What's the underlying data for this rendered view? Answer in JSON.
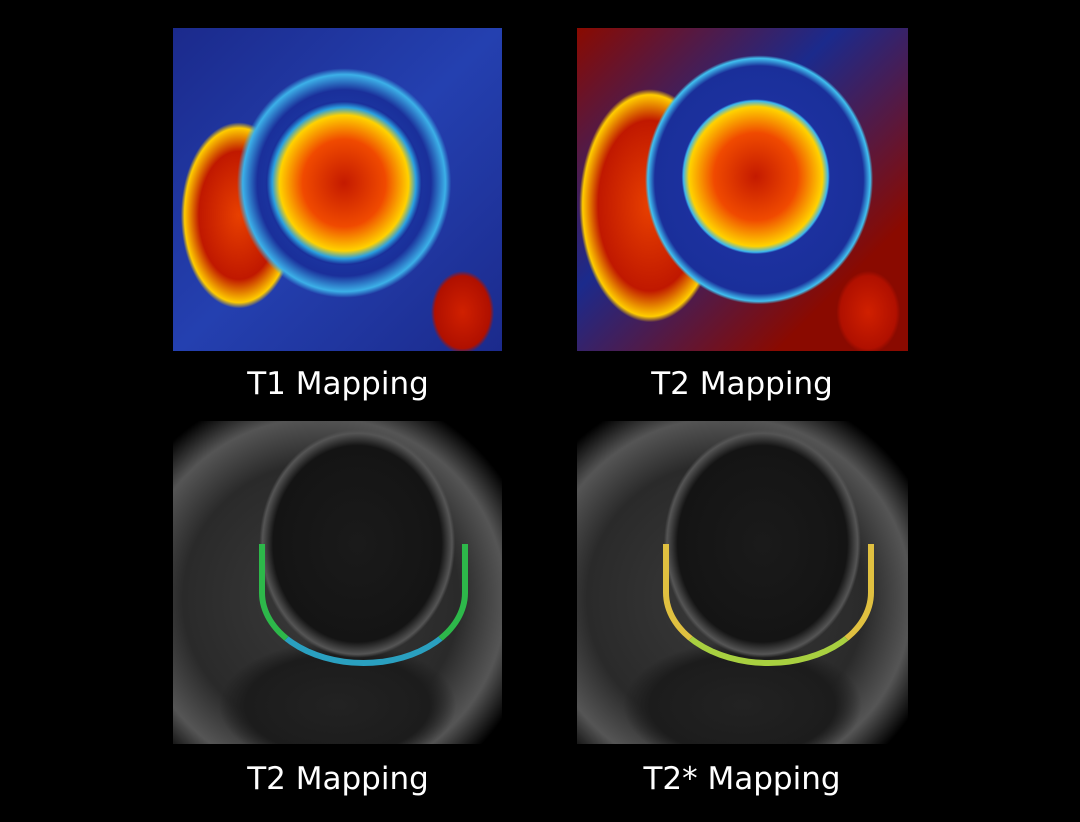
{
  "panels": [
    {
      "label": "T1 Mapping"
    },
    {
      "label": "T2 Mapping"
    },
    {
      "label": "T2 Mapping"
    },
    {
      "label": "T2* Mapping"
    }
  ]
}
